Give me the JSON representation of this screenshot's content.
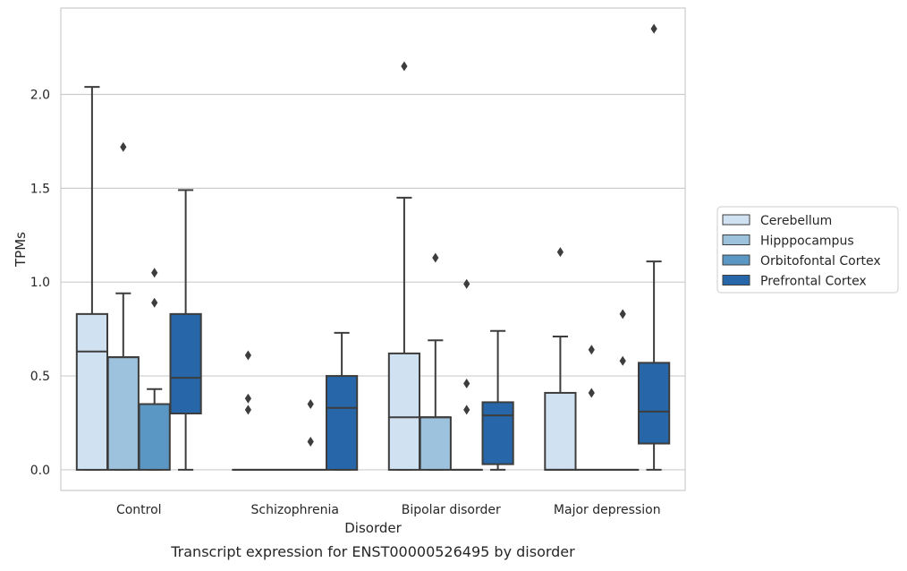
{
  "caption": "Transcript expression for ENST00000526495 by disorder",
  "chart_data": {
    "type": "box",
    "xlabel": "Disorder",
    "ylabel": "TPMs",
    "ylim": [
      -0.11,
      2.46
    ],
    "yticks": [
      0.0,
      0.5,
      1.0,
      1.5,
      2.0
    ],
    "ytick_labels": [
      "0.0",
      "0.5",
      "1.0",
      "1.5",
      "2.0"
    ],
    "grid": "horizontal",
    "legend_position": "right",
    "categories": [
      "Control",
      "Schizophrenia",
      "Bipolar disorder",
      "Major depression"
    ],
    "series": [
      {
        "name": "Cerebellum",
        "color": "#d0e1f2",
        "boxes": [
          {
            "q1": 0.0,
            "median": 0.63,
            "q3": 0.83,
            "whisker_low": 0.0,
            "whisker_high": 2.04,
            "outliers": []
          },
          {
            "q1": 0.0,
            "median": 0.0,
            "q3": 0.0,
            "whisker_low": 0.0,
            "whisker_high": 0.0,
            "outliers": [
              0.61,
              0.38,
              0.32
            ]
          },
          {
            "q1": 0.0,
            "median": 0.28,
            "q3": 0.62,
            "whisker_low": 0.0,
            "whisker_high": 1.45,
            "outliers": [
              2.15
            ]
          },
          {
            "q1": 0.0,
            "median": 0.0,
            "q3": 0.41,
            "whisker_low": 0.0,
            "whisker_high": 0.71,
            "outliers": [
              1.16
            ]
          }
        ]
      },
      {
        "name": "Hipppocampus",
        "color": "#9cc2dd",
        "boxes": [
          {
            "q1": 0.0,
            "median": 0.6,
            "q3": 0.6,
            "whisker_low": 0.0,
            "whisker_high": 0.94,
            "outliers": [
              1.72
            ]
          },
          {
            "q1": 0.0,
            "median": 0.0,
            "q3": 0.0,
            "whisker_low": 0.0,
            "whisker_high": 0.0,
            "outliers": []
          },
          {
            "q1": 0.0,
            "median": 0.28,
            "q3": 0.28,
            "whisker_low": 0.0,
            "whisker_high": 0.69,
            "outliers": [
              1.13
            ]
          },
          {
            "q1": 0.0,
            "median": 0.0,
            "q3": 0.0,
            "whisker_low": 0.0,
            "whisker_high": 0.0,
            "outliers": [
              0.64,
              0.41
            ]
          }
        ]
      },
      {
        "name": "Orbitofontal Cortex",
        "color": "#5a97c4",
        "boxes": [
          {
            "q1": 0.0,
            "median": 0.35,
            "q3": 0.35,
            "whisker_low": 0.0,
            "whisker_high": 0.43,
            "outliers": [
              1.05,
              0.89
            ]
          },
          {
            "q1": 0.0,
            "median": 0.0,
            "q3": 0.0,
            "whisker_low": 0.0,
            "whisker_high": 0.0,
            "outliers": [
              0.35,
              0.15
            ]
          },
          {
            "q1": 0.0,
            "median": 0.0,
            "q3": 0.0,
            "whisker_low": 0.0,
            "whisker_high": 0.0,
            "outliers": [
              0.99,
              0.46,
              0.32
            ]
          },
          {
            "q1": 0.0,
            "median": 0.0,
            "q3": 0.0,
            "whisker_low": 0.0,
            "whisker_high": 0.0,
            "outliers": [
              0.83,
              0.58
            ]
          }
        ]
      },
      {
        "name": "Prefrontal Cortex",
        "color": "#2766a8",
        "boxes": [
          {
            "q1": 0.3,
            "median": 0.49,
            "q3": 0.83,
            "whisker_low": 0.0,
            "whisker_high": 1.49,
            "outliers": []
          },
          {
            "q1": 0.0,
            "median": 0.33,
            "q3": 0.5,
            "whisker_low": 0.0,
            "whisker_high": 0.73,
            "outliers": []
          },
          {
            "q1": 0.03,
            "median": 0.29,
            "q3": 0.36,
            "whisker_low": 0.0,
            "whisker_high": 0.74,
            "outliers": []
          },
          {
            "q1": 0.14,
            "median": 0.31,
            "q3": 0.57,
            "whisker_low": 0.0,
            "whisker_high": 1.11,
            "outliers": [
              2.35
            ]
          }
        ]
      }
    ]
  }
}
